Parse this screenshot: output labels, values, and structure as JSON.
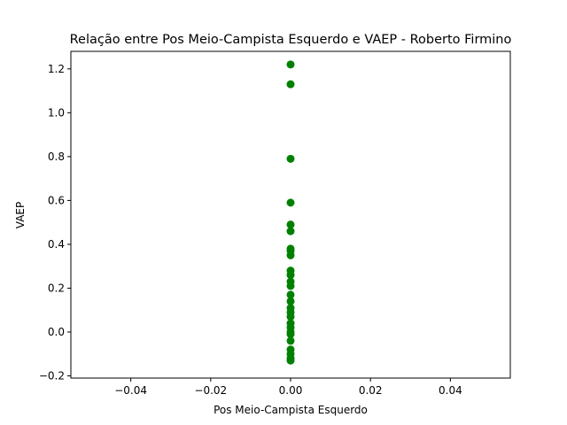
{
  "chart_data": {
    "type": "scatter",
    "title": "Relação entre Pos Meio-Campista Esquerdo e VAEP - Roberto Firmino",
    "xlabel": "Pos Meio-Campista Esquerdo",
    "ylabel": "VAEP",
    "xlim": [
      -0.055,
      0.055
    ],
    "ylim": [
      -0.21,
      1.28
    ],
    "x_ticks": [
      -0.04,
      -0.02,
      0.0,
      0.02,
      0.04
    ],
    "x_tick_labels": [
      "−0.04",
      "−0.02",
      "0.00",
      "0.02",
      "0.04"
    ],
    "y_ticks": [
      -0.2,
      0.0,
      0.2,
      0.4,
      0.6,
      0.8,
      1.0,
      1.2
    ],
    "y_tick_labels": [
      "−0.2",
      "0.0",
      "0.2",
      "0.4",
      "0.6",
      "0.8",
      "1.0",
      "1.2"
    ],
    "grid": false,
    "marker_color": "#008000",
    "points": [
      {
        "x": 0,
        "y": 1.22
      },
      {
        "x": 0,
        "y": 1.13
      },
      {
        "x": 0,
        "y": 0.79
      },
      {
        "x": 0,
        "y": 0.59
      },
      {
        "x": 0,
        "y": 0.49
      },
      {
        "x": 0,
        "y": 0.46
      },
      {
        "x": 0,
        "y": 0.38
      },
      {
        "x": 0,
        "y": 0.37
      },
      {
        "x": 0,
        "y": 0.35
      },
      {
        "x": 0,
        "y": 0.28
      },
      {
        "x": 0,
        "y": 0.26
      },
      {
        "x": 0,
        "y": 0.23
      },
      {
        "x": 0,
        "y": 0.21
      },
      {
        "x": 0,
        "y": 0.17
      },
      {
        "x": 0,
        "y": 0.14
      },
      {
        "x": 0,
        "y": 0.11
      },
      {
        "x": 0,
        "y": 0.09
      },
      {
        "x": 0,
        "y": 0.07
      },
      {
        "x": 0,
        "y": 0.04
      },
      {
        "x": 0,
        "y": 0.02
      },
      {
        "x": 0,
        "y": 0.0
      },
      {
        "x": 0,
        "y": -0.01
      },
      {
        "x": 0,
        "y": -0.04
      },
      {
        "x": 0,
        "y": -0.08
      },
      {
        "x": 0,
        "y": -0.1
      },
      {
        "x": 0,
        "y": -0.12
      },
      {
        "x": 0,
        "y": -0.13
      }
    ]
  }
}
